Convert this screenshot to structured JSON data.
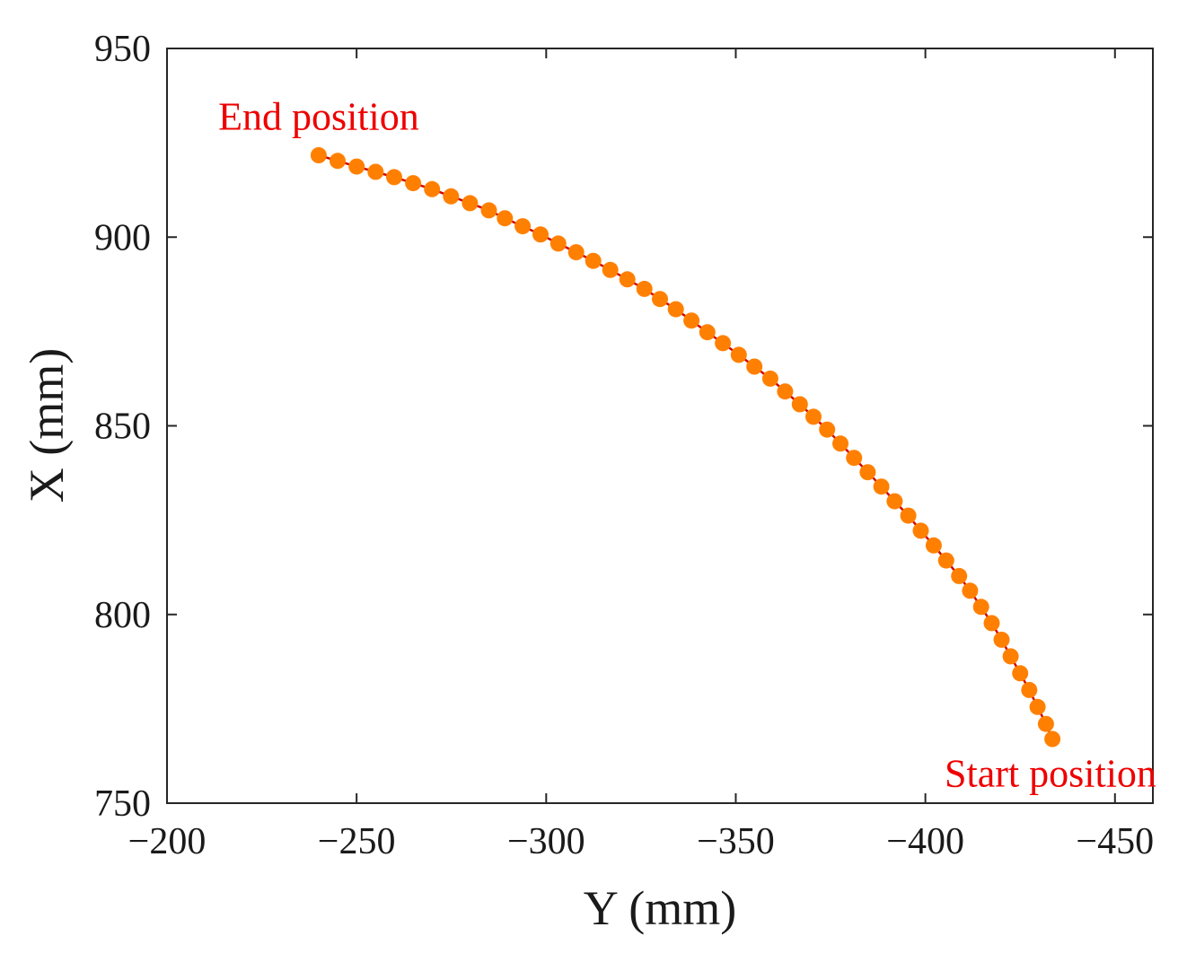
{
  "chart_data": {
    "type": "line",
    "title": "",
    "xlabel": "Y (mm)",
    "ylabel": "X (mm)",
    "xlim": [
      -200,
      -460
    ],
    "ylim": [
      750,
      950
    ],
    "x_reversed": true,
    "xticks": [
      -200,
      -250,
      -300,
      -350,
      -400,
      -450
    ],
    "xtick_labels": [
      "−200",
      "−250",
      "−300",
      "−350",
      "−400",
      "−450"
    ],
    "yticks": [
      750,
      800,
      850,
      900,
      950
    ],
    "ytick_labels": [
      "750",
      "800",
      "850",
      "900",
      "950"
    ],
    "grid": false,
    "annotations": [
      {
        "name": "end-position",
        "text": "End position",
        "at": [
          -240,
          932
        ]
      },
      {
        "name": "start-position",
        "text": "Start position",
        "at": [
          -433,
          758
        ]
      }
    ],
    "series": [
      {
        "name": "trajectory",
        "line_color": "#d40000",
        "marker_color": "#ff8000",
        "marker": "circle",
        "x": [
          -240.0,
          -245.0,
          -250.0,
          -255.0,
          -259.9,
          -264.9,
          -269.9,
          -274.9,
          -279.9,
          -284.9,
          -289.1,
          -293.8,
          -298.5,
          -303.2,
          -307.9,
          -312.4,
          -316.9,
          -321.4,
          -325.9,
          -330.0,
          -334.2,
          -338.3,
          -342.5,
          -346.6,
          -350.8,
          -354.9,
          -359.1,
          -363.0,
          -366.9,
          -370.5,
          -374.1,
          -377.6,
          -381.2,
          -384.8,
          -388.4,
          -391.9,
          -395.5,
          -398.8,
          -402.2,
          -405.5,
          -408.9,
          -411.8,
          -414.7,
          -417.5,
          -420.1,
          -422.5,
          -425.0,
          -427.4,
          -429.6,
          -431.8,
          -433.5
        ],
        "y": [
          921.7,
          920.2,
          918.7,
          917.3,
          915.9,
          914.3,
          912.7,
          910.8,
          909.0,
          907.1,
          905.0,
          902.9,
          900.7,
          898.3,
          896.0,
          893.7,
          891.3,
          888.8,
          886.3,
          883.6,
          880.9,
          877.9,
          874.8,
          871.9,
          868.8,
          865.7,
          862.5,
          859.1,
          855.7,
          852.4,
          849.0,
          845.3,
          841.5,
          837.7,
          833.9,
          830.0,
          826.2,
          822.2,
          818.3,
          814.3,
          810.2,
          806.3,
          802.0,
          797.7,
          793.3,
          788.9,
          784.4,
          780.0,
          775.5,
          771.0,
          767.0
        ]
      }
    ]
  }
}
